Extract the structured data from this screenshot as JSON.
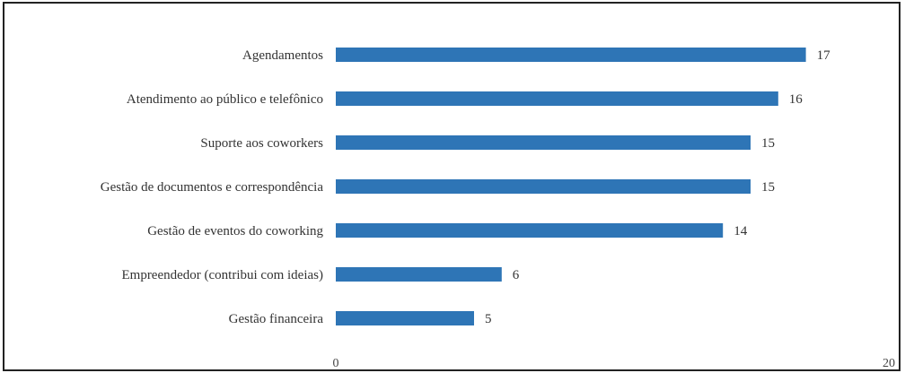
{
  "chart_data": {
    "type": "bar",
    "orientation": "horizontal",
    "categories": [
      "Agendamentos",
      "Atendimento ao público e telefônico",
      "Suporte aos coworkers",
      "Gestão de documentos e correspondência",
      "Gestão de eventos do coworking",
      "Empreendedor (contribui com ideias)",
      "Gestão financeira"
    ],
    "values": [
      17,
      16,
      15,
      15,
      14,
      6,
      5
    ],
    "value_labels": [
      "17",
      "16",
      "15",
      "15",
      "14",
      "6",
      "5"
    ],
    "xlim": [
      0,
      20
    ],
    "x_ticks": [
      "0",
      "20"
    ],
    "bar_color": "#2E75B6",
    "grid": false,
    "legend": "none",
    "title": "",
    "xlabel": "",
    "ylabel": ""
  }
}
